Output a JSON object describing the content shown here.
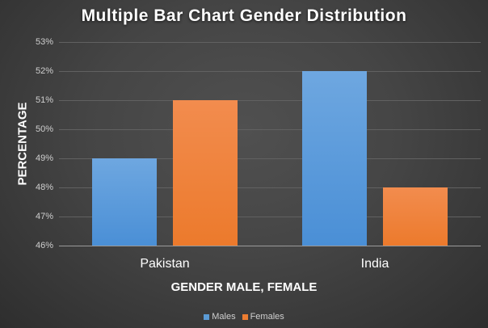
{
  "chart_data": {
    "type": "bar",
    "title": "Multiple Bar Chart Gender Distribution",
    "xlabel": "GENDER MALE, FEMALE",
    "ylabel": "PERCENTAGE",
    "categories": [
      "Pakistan",
      "India"
    ],
    "series": [
      {
        "name": "Males",
        "values": [
          49,
          52
        ],
        "color": "#5b9bd5"
      },
      {
        "name": "Females",
        "values": [
          51,
          48
        ],
        "color": "#ed7d31"
      }
    ],
    "ylim": [
      46,
      53
    ],
    "yticks": [
      "46%",
      "47%",
      "48%",
      "49%",
      "50%",
      "51%",
      "52%",
      "53%"
    ],
    "grid": true,
    "legend_position": "bottom"
  },
  "legend": [
    {
      "label": "Males",
      "color": "#5b9bd5"
    },
    {
      "label": "Females",
      "color": "#ed7d31"
    }
  ]
}
